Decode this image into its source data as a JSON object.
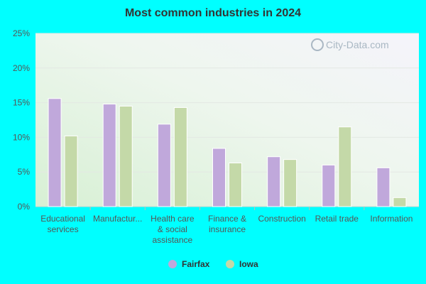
{
  "chart_data": {
    "type": "bar",
    "title": "Most common industries in 2024",
    "xlabel": "",
    "ylabel": "",
    "categories": [
      [
        "Educational",
        "services"
      ],
      [
        "Manufactur..."
      ],
      [
        "Health care",
        "& social",
        "assistance"
      ],
      [
        "Finance &",
        "insurance"
      ],
      [
        "Construction"
      ],
      [
        "Retail trade"
      ],
      [
        "Information"
      ]
    ],
    "series": [
      {
        "name": "Fairfax",
        "color": "#c0a8db",
        "values": [
          15.6,
          14.8,
          11.9,
          8.4,
          7.2,
          6.0,
          5.6
        ]
      },
      {
        "name": "Iowa",
        "color": "#c4d9a8",
        "values": [
          10.2,
          14.5,
          14.3,
          6.3,
          6.8,
          11.5,
          1.3
        ]
      }
    ],
    "ylim": [
      0,
      25
    ],
    "yticks": [
      0,
      5,
      10,
      15,
      20,
      25
    ],
    "ytick_format": "{v}%",
    "grid": true,
    "legend_position": "bottom",
    "watermark": "City-Data.com"
  }
}
